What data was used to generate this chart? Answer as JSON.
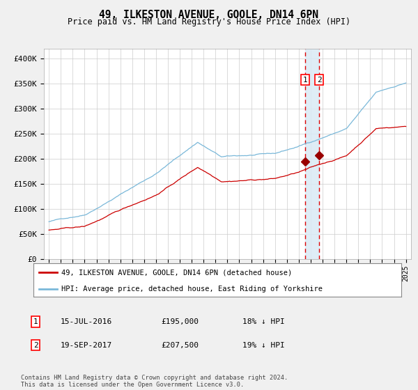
{
  "title": "49, ILKESTON AVENUE, GOOLE, DN14 6PN",
  "subtitle": "Price paid vs. HM Land Registry's House Price Index (HPI)",
  "legend_line1": "49, ILKESTON AVENUE, GOOLE, DN14 6PN (detached house)",
  "legend_line2": "HPI: Average price, detached house, East Riding of Yorkshire",
  "transaction1_date": "15-JUL-2016",
  "transaction1_price": 195000,
  "transaction1_label": "18% ↓ HPI",
  "transaction2_date": "19-SEP-2017",
  "transaction2_price": 207500,
  "transaction2_label": "19% ↓ HPI",
  "footnote": "Contains HM Land Registry data © Crown copyright and database right 2024.\nThis data is licensed under the Open Government Licence v3.0.",
  "hpi_color": "#7ab8d9",
  "price_color": "#cc0000",
  "marker_color": "#990000",
  "vline_color": "#dd0000",
  "vband_color": "#daeaf5",
  "background_color": "#f0f0f0",
  "plot_background": "#ffffff",
  "grid_color": "#cccccc",
  "ylim": [
    0,
    420000
  ],
  "yticks": [
    0,
    50000,
    100000,
    150000,
    200000,
    250000,
    300000,
    350000,
    400000
  ],
  "ytick_labels": [
    "£0",
    "£50K",
    "£100K",
    "£150K",
    "£200K",
    "£250K",
    "£300K",
    "£350K",
    "£400K"
  ],
  "transaction1_x": 2016.54,
  "transaction2_x": 2017.72,
  "xstart": 1995.0,
  "xend": 2025.083
}
